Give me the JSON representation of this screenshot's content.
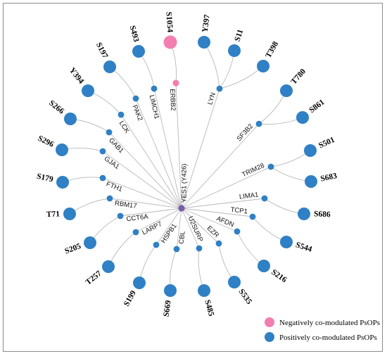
{
  "hub": {
    "label": "YES1 (Y426)",
    "color": "#7b5ea7"
  },
  "colors": {
    "negative": "#f27fb0",
    "positive": "#2f80c4",
    "edge": "#b8b8b8"
  },
  "legend": [
    {
      "label": "Negatively co-modulated PsOPs",
      "type": "negative"
    },
    {
      "label": "Positively co-modulated PsOPs",
      "type": "positive"
    }
  ],
  "genes": [
    {
      "name": "ERBB2",
      "type": "negative",
      "sites": [
        "S1054"
      ]
    },
    {
      "name": "LYN",
      "type": "positive",
      "sites": [
        "Y397",
        "S11",
        "T398"
      ]
    },
    {
      "name": "SF3B2",
      "type": "positive",
      "sites": [
        "T780",
        "S861"
      ]
    },
    {
      "name": "TRIM28",
      "type": "positive",
      "sites": [
        "S501",
        "S683"
      ]
    },
    {
      "name": "LIMA1",
      "type": "positive",
      "sites": [
        "S686"
      ]
    },
    {
      "name": "TCP1",
      "type": "positive",
      "sites": [
        "S544"
      ]
    },
    {
      "name": "AFDN",
      "type": "positive",
      "sites": [
        "S216"
      ]
    },
    {
      "name": "EZR",
      "type": "positive",
      "sites": [
        "S535"
      ]
    },
    {
      "name": "U2SURP",
      "type": "positive",
      "sites": [
        "S485"
      ]
    },
    {
      "name": "CBL",
      "type": "positive",
      "sites": [
        "S669"
      ]
    },
    {
      "name": "HSPB1",
      "type": "positive",
      "sites": [
        "S199"
      ]
    },
    {
      "name": "LARP7",
      "type": "positive",
      "sites": [
        "T257"
      ]
    },
    {
      "name": "CCT6A",
      "type": "positive",
      "sites": [
        "S205"
      ]
    },
    {
      "name": "RBM17",
      "type": "positive",
      "sites": [
        "T71"
      ]
    },
    {
      "name": "FTH1",
      "type": "positive",
      "sites": [
        "S179"
      ]
    },
    {
      "name": "GJA1",
      "type": "positive",
      "sites": [
        "S296"
      ]
    },
    {
      "name": "GAB1",
      "type": "positive",
      "sites": [
        "S266"
      ]
    },
    {
      "name": "LCK",
      "type": "positive",
      "sites": [
        "Y394"
      ]
    },
    {
      "name": "PAK2",
      "type": "positive",
      "sites": [
        "S197"
      ]
    },
    {
      "name": "LIMCH1",
      "type": "positive",
      "sites": [
        "S493"
      ]
    }
  ]
}
